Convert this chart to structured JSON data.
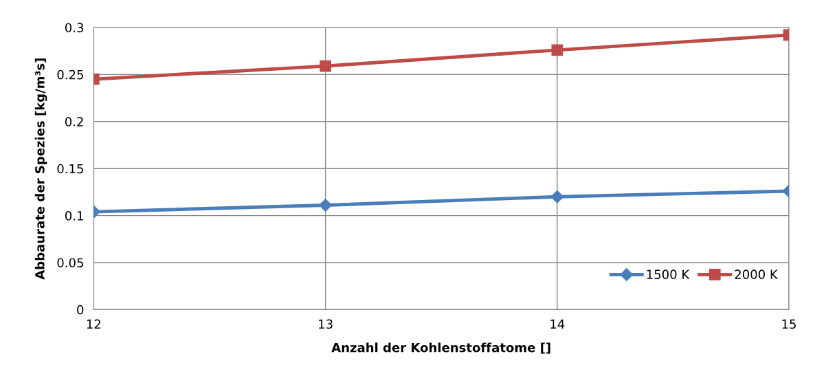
{
  "chart_data": {
    "type": "line",
    "xlabel": "Anzahl der Kohlenstoffatome []",
    "ylabel": "Abbaurate der Spezies [kg/m³s]",
    "x": [
      12,
      13,
      14,
      15
    ],
    "series": [
      {
        "name": "1500 K",
        "color": "#4a7ebb",
        "marker": "diamond",
        "values": [
          0.104,
          0.111,
          0.12,
          0.126
        ]
      },
      {
        "name": "2000 K",
        "color": "#be4b48",
        "marker": "square",
        "values": [
          0.245,
          0.259,
          0.276,
          0.292
        ]
      }
    ],
    "xlim": [
      12,
      15
    ],
    "xticks": [
      12,
      13,
      14,
      15
    ],
    "ylim": [
      0,
      0.3
    ],
    "yticks": [
      {
        "value": 0,
        "label": "0"
      },
      0.05,
      0.1,
      0.15,
      0.2,
      0.25,
      0.3
    ],
    "grid": true,
    "legend": "bottom right",
    "line_style": "solid"
  }
}
